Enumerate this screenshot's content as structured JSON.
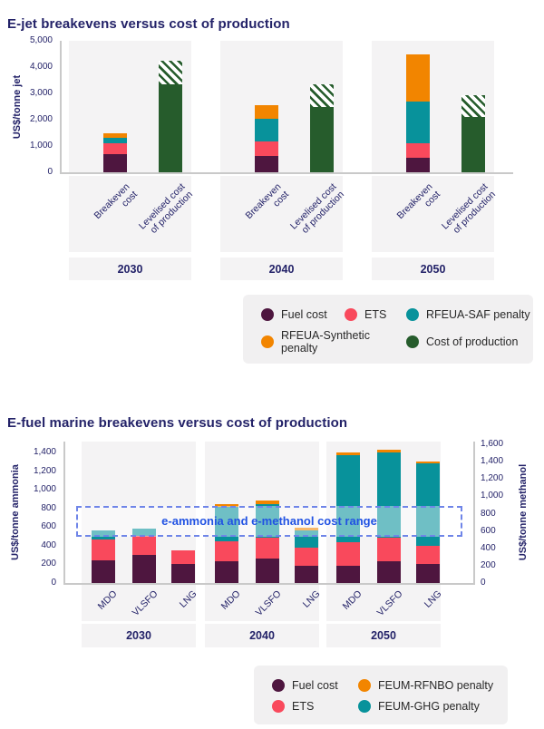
{
  "colors": {
    "fuel_cost": "#4e163f",
    "ets": "#f9495c",
    "teal_penalty": "#08929b",
    "orange_penalty": "#f28500",
    "production_green": "#265c2c",
    "title_navy": "#232268",
    "annotation_blue": "#2152e3",
    "range_box_border": "#6f85e8",
    "panel_background": "#f4f3f4"
  },
  "chart_data": [
    {
      "type": "bar",
      "stacked": true,
      "title": "E-jet breakevens versus cost of production",
      "ylabel": "US$/tonne jet",
      "ylim": [
        0,
        5000
      ],
      "yticks": [
        0,
        1000,
        2000,
        3000,
        4000,
        5000
      ],
      "bar_labels": [
        [
          "Breakeven",
          "cost"
        ],
        [
          "Levelised cost",
          "of production"
        ]
      ],
      "series": [
        {
          "name": "Fuel cost",
          "color": "#4e163f"
        },
        {
          "name": "ETS",
          "color": "#f9495c"
        },
        {
          "name": "RFEUA-SAF penalty",
          "color": "#08929b"
        },
        {
          "name": "RFEUA-Synthetic penalty",
          "color": "#f28500"
        }
      ],
      "production_series": {
        "name": "Cost of production",
        "color": "#265c2c",
        "hatched_label": "uncertainty range (hatched)"
      },
      "groups": [
        {
          "year": "2030",
          "breakeven": [
            700,
            400,
            220,
            180
          ],
          "production_solid": 3350,
          "production_total": 4230
        },
        {
          "year": "2040",
          "breakeven": [
            630,
            550,
            850,
            520
          ],
          "production_solid": 2490,
          "production_total": 3330
        },
        {
          "year": "2050",
          "breakeven": [
            540,
            570,
            1590,
            1790
          ],
          "production_solid": 2100,
          "production_total": 2930
        }
      ],
      "legend": [
        {
          "label": "Fuel cost",
          "color": "#4e163f"
        },
        {
          "label": "ETS",
          "color": "#f9495c"
        },
        {
          "label": "RFEUA-SAF penalty",
          "color": "#08929b"
        },
        {
          "label": "RFEUA-Synthetic penalty",
          "color": "#f28500"
        },
        {
          "label": "Cost of production",
          "color": "#265c2c"
        }
      ]
    },
    {
      "type": "bar",
      "stacked": true,
      "title": "E-fuel marine breakevens versus cost of production",
      "ylabel_left": "US$/tonne ammonia",
      "ylabel_right": "US$/tonne methanol",
      "ylim_left": [
        0,
        1400
      ],
      "ylim_right": [
        0,
        1600
      ],
      "yticks_left": [
        0,
        200,
        400,
        600,
        800,
        1000,
        1200,
        1400
      ],
      "yticks_right": [
        0,
        200,
        400,
        600,
        800,
        1000,
        1200,
        1400,
        1600
      ],
      "series": [
        {
          "name": "Fuel cost",
          "color": "#4e163f"
        },
        {
          "name": "ETS",
          "color": "#f9495c"
        },
        {
          "name": "FEUM-GHG penalty",
          "color": "#08929b"
        },
        {
          "name": "FEUM-RFNBO penalty",
          "color": "#f28500"
        }
      ],
      "groups": [
        {
          "year": "2030",
          "bars": [
            {
              "label": "MDO",
              "values": [
                240,
                230,
                90,
                0
              ]
            },
            {
              "label": "VLSFO",
              "values": [
                300,
                205,
                80,
                0
              ]
            },
            {
              "label": "LNG",
              "values": [
                200,
                150,
                0,
                0
              ]
            }
          ]
        },
        {
          "year": "2040",
          "bars": [
            {
              "label": "MDO",
              "values": [
                230,
                220,
                370,
                30
              ]
            },
            {
              "label": "VLSFO",
              "values": [
                265,
                225,
                360,
                30
              ]
            },
            {
              "label": "LNG",
              "values": [
                180,
                200,
                180,
                30
              ]
            }
          ]
        },
        {
          "year": "2050",
          "bars": [
            {
              "label": "MDO",
              "values": [
                180,
                260,
                930,
                30
              ]
            },
            {
              "label": "VLSFO",
              "values": [
                230,
                260,
                910,
                30
              ]
            },
            {
              "label": "LNG",
              "values": [
                200,
                200,
                880,
                20
              ]
            }
          ]
        }
      ],
      "annotation": {
        "text": "e-ammonia and e-methanol cost range",
        "value_range_left_axis": [
          500,
          830
        ]
      },
      "legend": [
        {
          "label": "Fuel cost",
          "color": "#4e163f"
        },
        {
          "label": "ETS",
          "color": "#f9495c"
        },
        {
          "label": "FEUM-RFNBO penalty",
          "color": "#f28500"
        },
        {
          "label": "FEUM-GHG penalty",
          "color": "#08929b"
        }
      ]
    }
  ]
}
